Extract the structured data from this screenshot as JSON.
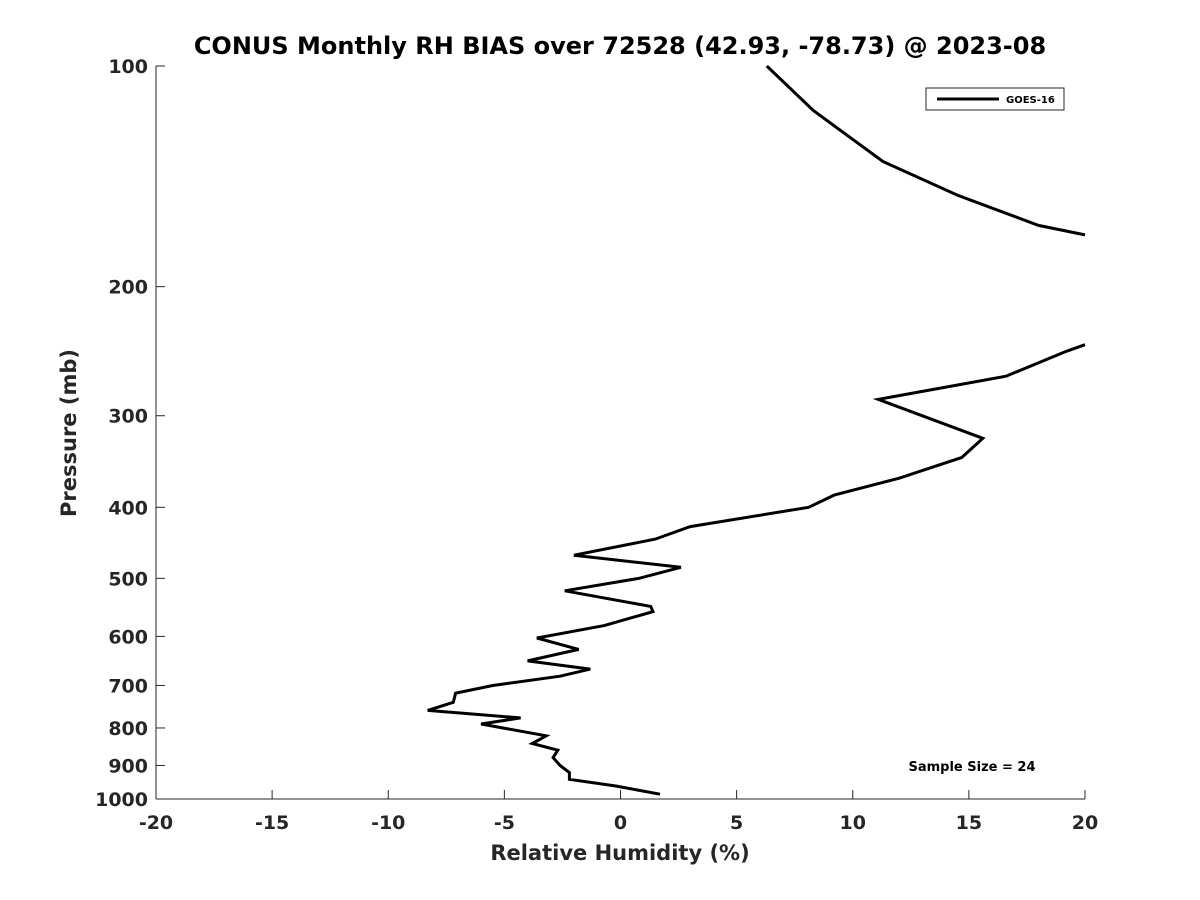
{
  "chart_data": {
    "type": "line",
    "title": "CONUS Monthly RH BIAS over 72528 (42.93, -78.73) @ 2023-08",
    "xlabel": "Relative Humidity (%)",
    "ylabel": "Pressure (mb)",
    "xlim": [
      -20,
      20
    ],
    "ylim": [
      1000,
      100
    ],
    "y_scale": "log",
    "y_reversed": true,
    "grid": false,
    "legend_position": "top-right",
    "x_ticks": [
      -20,
      -15,
      -10,
      -5,
      0,
      5,
      10,
      15,
      20
    ],
    "x_tick_labels": [
      "-20",
      "-15",
      "-10",
      "-5",
      "0",
      "5",
      "10",
      "15",
      "20"
    ],
    "y_ticks": [
      100,
      200,
      300,
      400,
      500,
      600,
      700,
      800,
      900,
      1000
    ],
    "y_tick_labels": [
      "100",
      "200",
      "300",
      "400",
      "500",
      "600",
      "700",
      "800",
      "900",
      "1000"
    ],
    "annotation": "Sample Size = 24",
    "series": [
      {
        "name": "GOES-16",
        "color": "#000000",
        "segments": [
          [
            [
              6.3,
              100
            ],
            [
              8.3,
              115
            ],
            [
              11.3,
              135
            ],
            [
              14.5,
              150
            ],
            [
              18.0,
              165
            ],
            [
              20.0,
              170
            ]
          ],
          [
            [
              20.0,
              240
            ],
            [
              19.2,
              245
            ],
            [
              16.6,
              265
            ],
            [
              11.1,
              285
            ],
            [
              15.6,
              322
            ],
            [
              14.7,
              342
            ],
            [
              12.0,
              365
            ],
            [
              9.2,
              385
            ],
            [
              8.1,
              400
            ],
            [
              3.0,
              425
            ],
            [
              1.5,
              442
            ],
            [
              -2.0,
              465
            ],
            [
              2.6,
              483
            ],
            [
              0.8,
              500
            ],
            [
              -2.4,
              520
            ],
            [
              1.3,
              546
            ],
            [
              1.4,
              555
            ],
            [
              -0.7,
              580
            ],
            [
              -3.6,
              603
            ],
            [
              -1.8,
              625
            ],
            [
              -4.0,
              648
            ],
            [
              -1.3,
              665
            ],
            [
              -2.6,
              680
            ],
            [
              -5.5,
              700
            ],
            [
              -7.1,
              717
            ],
            [
              -7.2,
              738
            ],
            [
              -8.3,
              757
            ],
            [
              -4.3,
              775
            ],
            [
              -6.0,
              790
            ],
            [
              -3.2,
              820
            ],
            [
              -3.8,
              840
            ],
            [
              -2.7,
              858
            ],
            [
              -2.9,
              878
            ],
            [
              -2.6,
              900
            ],
            [
              -2.2,
              920
            ],
            [
              -2.2,
              940
            ],
            [
              -0.2,
              960
            ],
            [
              1.7,
              985
            ]
          ]
        ]
      }
    ]
  }
}
